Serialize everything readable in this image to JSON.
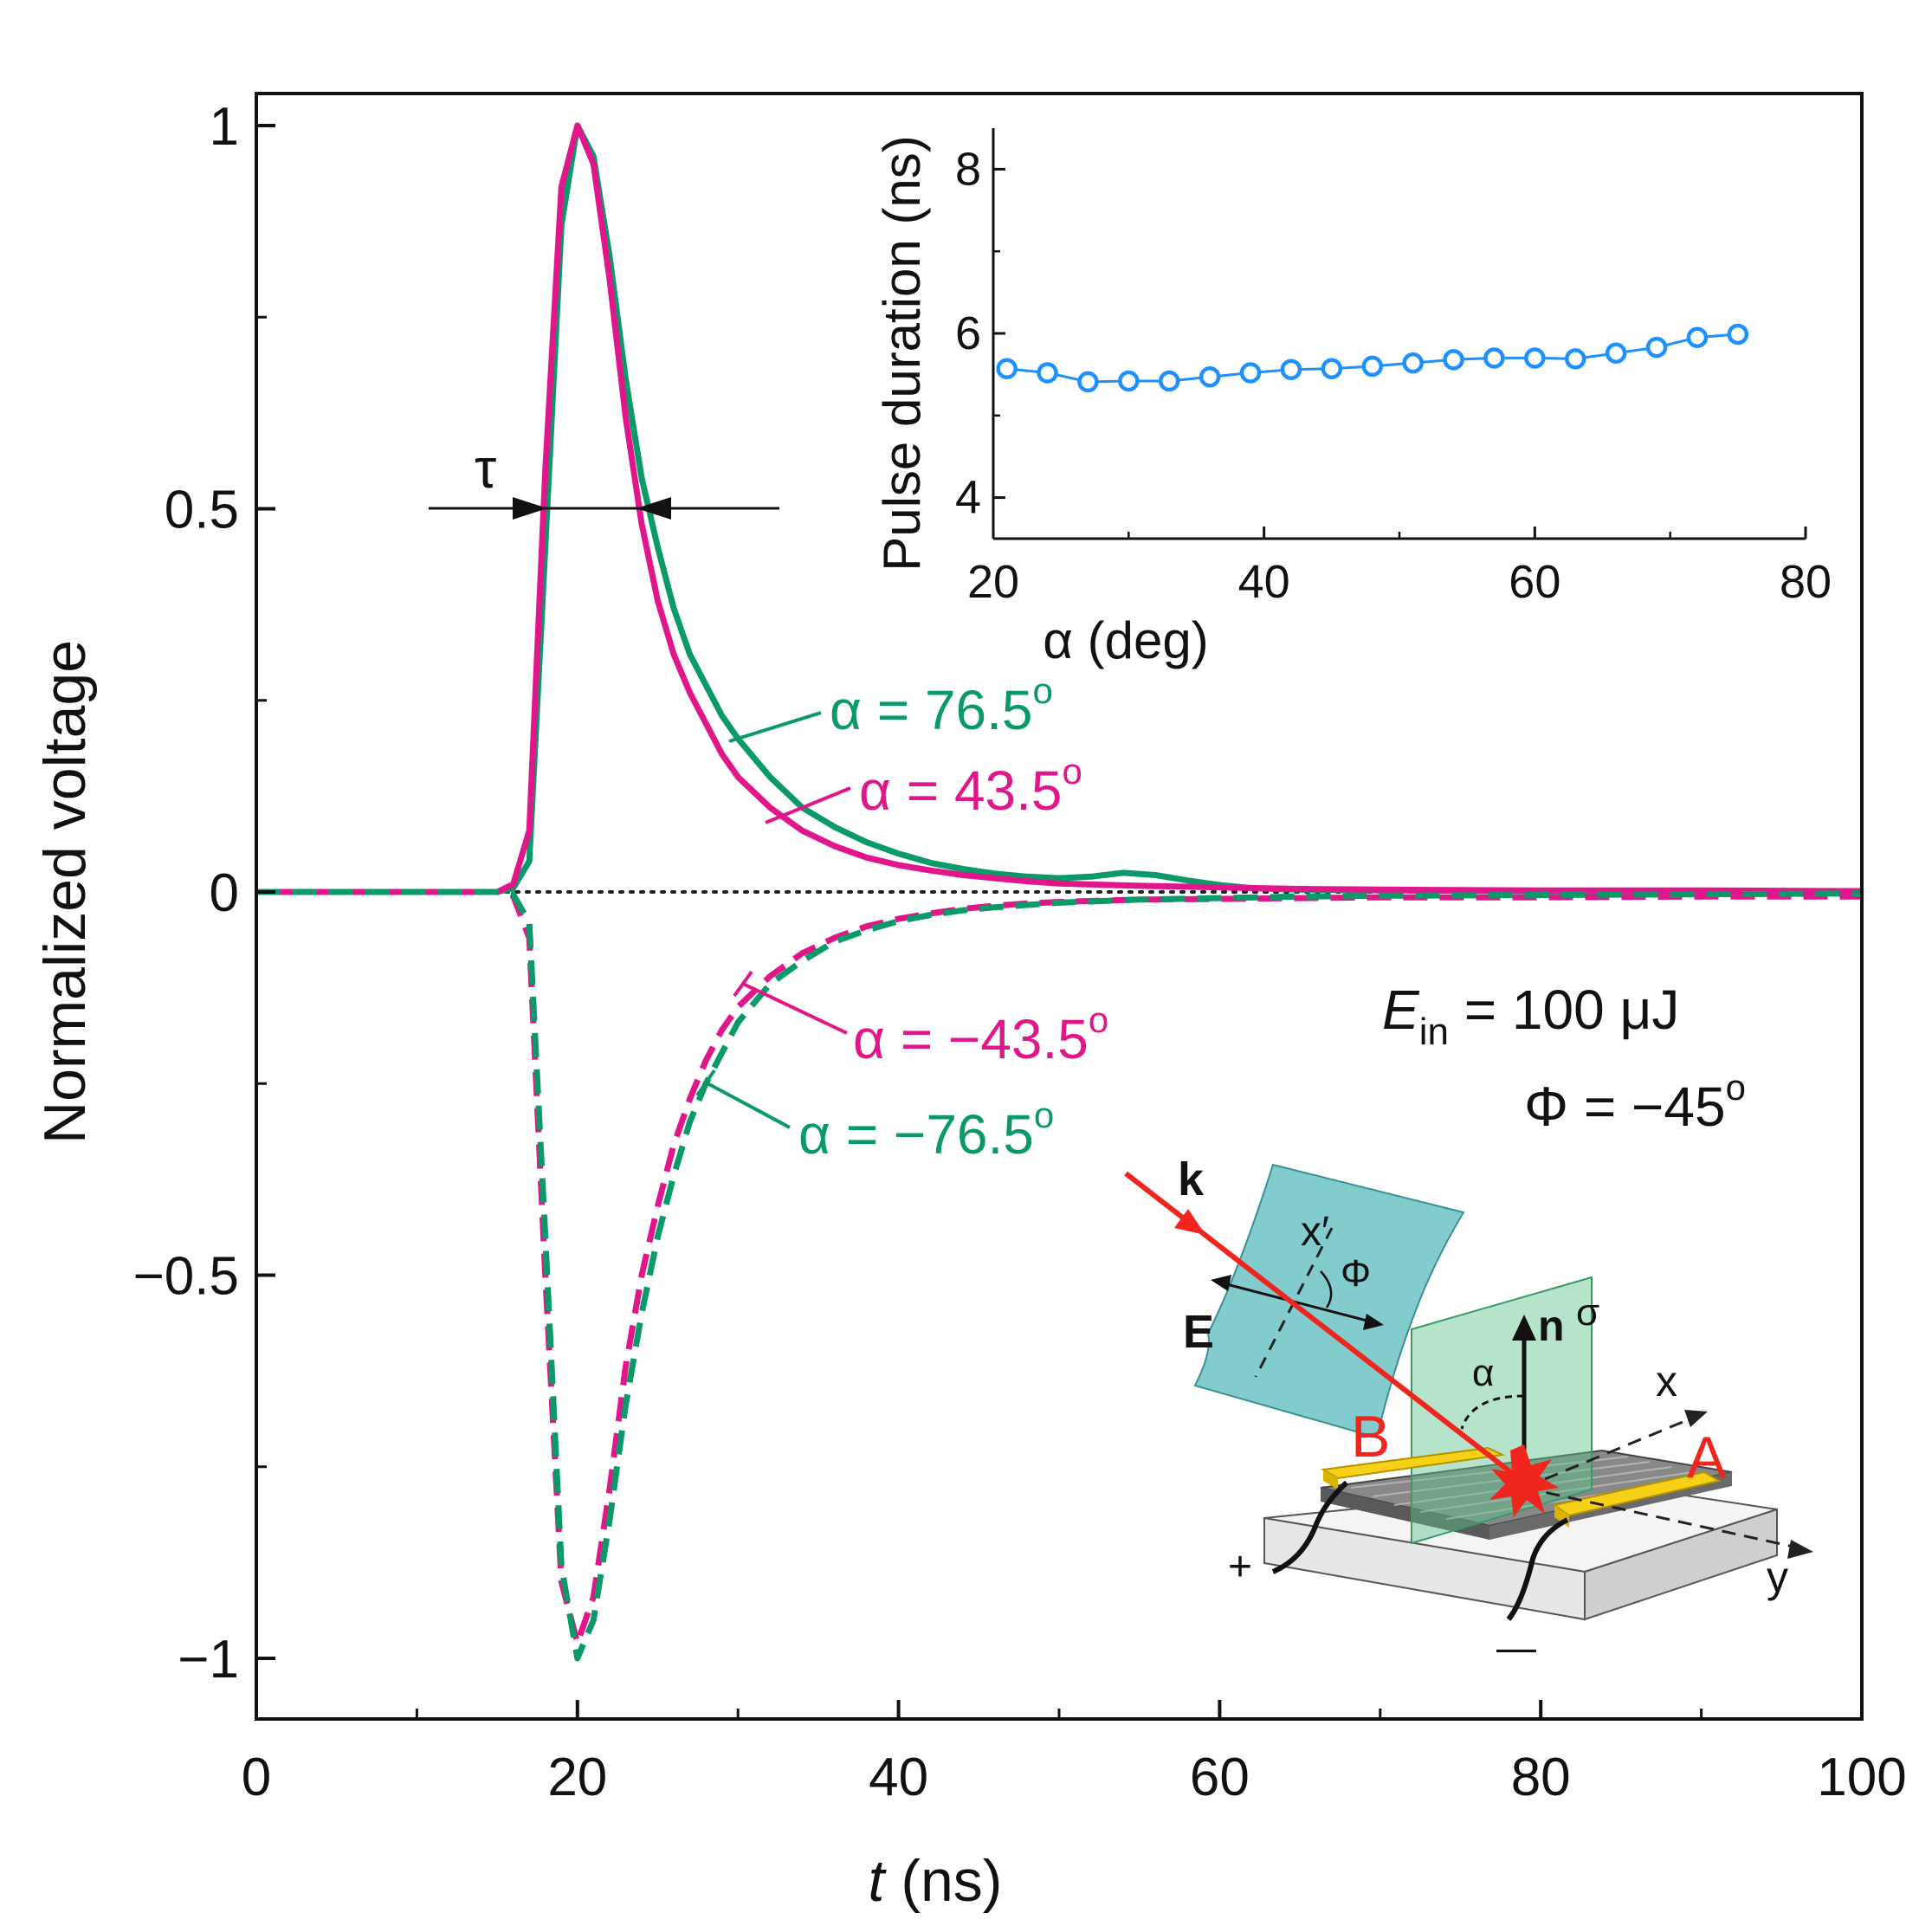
{
  "chart_data": [
    {
      "type": "line",
      "title": "",
      "xlabel": {
        "var": "t",
        "unit": " (ns)"
      },
      "ylabel": "Normalized voltage",
      "xlim": [
        0,
        100
      ],
      "ylim": [
        -1.08,
        1.05
      ],
      "xticks": [
        0,
        20,
        40,
        60,
        80,
        100
      ],
      "xtick_labels": [
        "0",
        "20",
        "40",
        "60",
        "80",
        "100"
      ],
      "yticks": [
        1,
        0.5,
        0,
        -0.5,
        -1
      ],
      "ytick_labels": [
        "1",
        "0.5",
        "0",
        "−0.5",
        "−1"
      ],
      "grid": false,
      "zero_line": "dotted",
      "series": [
        {
          "name": "α = 76.5",
          "sup": "o",
          "color": "#0a9a6a",
          "dash": "solid",
          "x": [
            0,
            10,
            15,
            16,
            17,
            18,
            19,
            20,
            21,
            22,
            23,
            24,
            25,
            26,
            27,
            28,
            29,
            30,
            32,
            34,
            36,
            38,
            40,
            42,
            44,
            46,
            48,
            50,
            52,
            54,
            56,
            58,
            60,
            62,
            65,
            70,
            80,
            90,
            100
          ],
          "y": [
            0,
            0,
            0,
            0.005,
            0.04,
            0.45,
            0.87,
            1.0,
            0.96,
            0.83,
            0.67,
            0.54,
            0.45,
            0.37,
            0.31,
            0.27,
            0.23,
            0.2,
            0.15,
            0.11,
            0.085,
            0.065,
            0.05,
            0.038,
            0.03,
            0.024,
            0.02,
            0.018,
            0.02,
            0.025,
            0.022,
            0.015,
            0.009,
            0.005,
            0.003,
            0.002,
            0.001,
            0.001,
            0.001
          ]
        },
        {
          "name": "α = 43.5",
          "sup": "o",
          "color": "#e0168a",
          "dash": "solid",
          "x": [
            0,
            10,
            15,
            16,
            17,
            18,
            19,
            20,
            21,
            22,
            23,
            24,
            25,
            26,
            27,
            28,
            29,
            30,
            32,
            34,
            36,
            38,
            40,
            42,
            44,
            46,
            48,
            50,
            55,
            60,
            65,
            70,
            80,
            90,
            100
          ],
          "y": [
            0,
            0,
            0,
            0.01,
            0.08,
            0.55,
            0.92,
            1.0,
            0.95,
            0.8,
            0.62,
            0.48,
            0.38,
            0.31,
            0.26,
            0.22,
            0.18,
            0.15,
            0.11,
            0.08,
            0.06,
            0.045,
            0.035,
            0.028,
            0.022,
            0.018,
            0.014,
            0.011,
            0.008,
            0.006,
            0.004,
            0.003,
            0.002,
            0.002,
            0.001
          ]
        },
        {
          "name": "α = −43.5",
          "sup": "o",
          "color": "#e0168a",
          "dash": "dashed",
          "x": [
            0,
            10,
            15,
            16,
            17,
            18,
            19,
            20,
            21,
            22,
            23,
            24,
            25,
            26,
            27,
            28,
            29,
            30,
            32,
            34,
            36,
            38,
            40,
            42,
            44,
            46,
            48,
            50,
            55,
            60,
            65,
            70,
            80,
            90,
            100
          ],
          "y": [
            0,
            0,
            0,
            -0.005,
            -0.06,
            -0.5,
            -0.9,
            -0.98,
            -0.92,
            -0.78,
            -0.62,
            -0.5,
            -0.41,
            -0.33,
            -0.27,
            -0.22,
            -0.18,
            -0.15,
            -0.11,
            -0.08,
            -0.06,
            -0.045,
            -0.035,
            -0.028,
            -0.022,
            -0.018,
            -0.015,
            -0.013,
            -0.01,
            -0.009,
            -0.008,
            -0.007,
            -0.007,
            -0.006,
            -0.006
          ]
        },
        {
          "name": "α = −76.5",
          "sup": "o",
          "color": "#0a9a6a",
          "dash": "dashed",
          "x": [
            0,
            10,
            15,
            16,
            17,
            18,
            19,
            20,
            21,
            22,
            23,
            24,
            25,
            26,
            27,
            28,
            29,
            30,
            32,
            34,
            36,
            38,
            40,
            42,
            44,
            46,
            48,
            50,
            55,
            60,
            65,
            70,
            80,
            90,
            100
          ],
          "y": [
            0,
            0,
            0,
            -0.003,
            -0.04,
            -0.45,
            -0.88,
            -1.0,
            -0.95,
            -0.82,
            -0.67,
            -0.55,
            -0.45,
            -0.37,
            -0.3,
            -0.25,
            -0.21,
            -0.17,
            -0.12,
            -0.09,
            -0.065,
            -0.05,
            -0.038,
            -0.03,
            -0.024,
            -0.02,
            -0.017,
            -0.014,
            -0.01,
            -0.008,
            -0.006,
            -0.005,
            -0.004,
            -0.003,
            -0.002
          ]
        }
      ],
      "annotations": {
        "tau": "τ",
        "energy": {
          "var": "E",
          "sub": "in",
          "rest": " = 100 μJ"
        },
        "phi": {
          "text": "Φ = −45",
          "sup": "o"
        }
      }
    },
    {
      "type": "scatter",
      "title": "",
      "xlabel": "α (deg)",
      "ylabel": "Pulse duration (ns)",
      "xlim": [
        20,
        80
      ],
      "ylim": [
        3.5,
        8.5
      ],
      "xticks": [
        20,
        40,
        60,
        80
      ],
      "xtick_labels": [
        "20",
        "40",
        "60",
        "80"
      ],
      "yticks": [
        4,
        6,
        8
      ],
      "ytick_labels": [
        "4",
        "6",
        "8"
      ],
      "color": "#1e90ff",
      "marker": "open-circle",
      "x": [
        21,
        24,
        27,
        30,
        33,
        36,
        39,
        42,
        45,
        48,
        51,
        54,
        57,
        60,
        63,
        66,
        69,
        72,
        75
      ],
      "y": [
        5.57,
        5.52,
        5.41,
        5.42,
        5.42,
        5.47,
        5.52,
        5.56,
        5.57,
        5.6,
        5.64,
        5.68,
        5.7,
        5.7,
        5.69,
        5.76,
        5.83,
        5.95,
        5.99
      ]
    }
  ],
  "diagram": {
    "k": "k",
    "E": "E",
    "x_prime": "x",
    "prime": "′",
    "phi": "Φ",
    "n": "n",
    "sigma": "σ",
    "alpha": "α",
    "x": "x",
    "y": "y",
    "A": "A",
    "B": "B",
    "plus": "+",
    "minus": "—"
  }
}
